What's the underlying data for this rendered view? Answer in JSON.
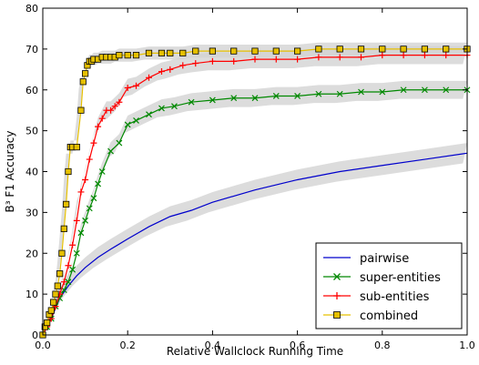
{
  "chart_data": {
    "type": "line",
    "xlabel": "Relative Wallclock Running Time",
    "ylabel": "B³ F1 Accuracy",
    "xlim": [
      0.0,
      1.0
    ],
    "ylim": [
      0,
      80
    ],
    "x_ticks": [
      "0.0",
      "0.2",
      "0.4",
      "0.6",
      "0.8",
      "1.0"
    ],
    "y_ticks": [
      "0",
      "10",
      "20",
      "30",
      "40",
      "50",
      "60",
      "70",
      "80"
    ],
    "grid": false,
    "legend_position": "lower-right",
    "series": [
      {
        "name": "pairwise",
        "color": "#0000cc",
        "marker": "none",
        "x": [
          0.0,
          0.02,
          0.04,
          0.06,
          0.08,
          0.1,
          0.13,
          0.16,
          0.2,
          0.25,
          0.3,
          0.35,
          0.4,
          0.5,
          0.6,
          0.7,
          0.8,
          0.9,
          1.0
        ],
        "y": [
          0,
          4,
          9,
          12,
          14.5,
          16.5,
          19,
          21,
          23.5,
          26.5,
          29,
          30.5,
          32.5,
          35.5,
          38,
          40,
          41.5,
          43,
          44.5
        ]
      },
      {
        "name": "super-entities",
        "color": "#008800",
        "marker": "x",
        "x": [
          0.0,
          0.01,
          0.02,
          0.03,
          0.04,
          0.05,
          0.06,
          0.07,
          0.08,
          0.09,
          0.1,
          0.11,
          0.12,
          0.13,
          0.14,
          0.16,
          0.18,
          0.2,
          0.22,
          0.25,
          0.28,
          0.31,
          0.35,
          0.4,
          0.45,
          0.5,
          0.55,
          0.6,
          0.65,
          0.7,
          0.75,
          0.8,
          0.85,
          0.9,
          0.95,
          1.0
        ],
        "y": [
          0,
          2,
          4,
          7,
          9,
          11,
          13,
          16,
          20,
          25,
          28,
          31,
          33.5,
          37,
          40,
          45,
          47,
          51.5,
          52.5,
          54,
          55.5,
          56,
          57,
          57.5,
          58,
          58,
          58.5,
          58.5,
          59,
          59,
          59.5,
          59.5,
          60,
          60,
          60,
          60
        ]
      },
      {
        "name": "sub-entities",
        "color": "#ff0000",
        "marker": "+",
        "x": [
          0.0,
          0.01,
          0.02,
          0.03,
          0.04,
          0.05,
          0.06,
          0.07,
          0.08,
          0.09,
          0.1,
          0.11,
          0.12,
          0.13,
          0.14,
          0.15,
          0.16,
          0.17,
          0.18,
          0.2,
          0.22,
          0.25,
          0.28,
          0.3,
          0.33,
          0.36,
          0.4,
          0.45,
          0.5,
          0.55,
          0.6,
          0.65,
          0.7,
          0.75,
          0.8,
          0.85,
          0.9,
          0.95,
          1.0
        ],
        "y": [
          0,
          2,
          4,
          7,
          10,
          13,
          17,
          22,
          28,
          35,
          38,
          43,
          47,
          51,
          53,
          55,
          55,
          56,
          57,
          60.5,
          61,
          63,
          64.5,
          65,
          66,
          66.5,
          67,
          67,
          67.5,
          67.5,
          67.5,
          68,
          68,
          68,
          68.5,
          68.5,
          68.5,
          68.5,
          68.5
        ]
      },
      {
        "name": "combined",
        "color": "#e6c000",
        "marker": "s",
        "x": [
          0.0,
          0.005,
          0.01,
          0.015,
          0.02,
          0.025,
          0.03,
          0.035,
          0.04,
          0.045,
          0.05,
          0.055,
          0.06,
          0.065,
          0.07,
          0.08,
          0.09,
          0.095,
          0.1,
          0.105,
          0.11,
          0.115,
          0.12,
          0.13,
          0.14,
          0.15,
          0.16,
          0.17,
          0.18,
          0.2,
          0.22,
          0.25,
          0.28,
          0.3,
          0.33,
          0.36,
          0.4,
          0.45,
          0.5,
          0.55,
          0.6,
          0.65,
          0.7,
          0.75,
          0.8,
          0.85,
          0.9,
          0.95,
          1.0
        ],
        "y": [
          0,
          2,
          3,
          5,
          6,
          8,
          10,
          12,
          15,
          20,
          26,
          32,
          40,
          46,
          46,
          46,
          55,
          62,
          64,
          66,
          67,
          67,
          67.5,
          67.5,
          68,
          68,
          68,
          68,
          68.5,
          68.5,
          68.5,
          69,
          69,
          69,
          69,
          69.5,
          69.5,
          69.5,
          69.5,
          69.5,
          69.5,
          70,
          70,
          70,
          70,
          70,
          70,
          70,
          70
        ]
      }
    ]
  }
}
